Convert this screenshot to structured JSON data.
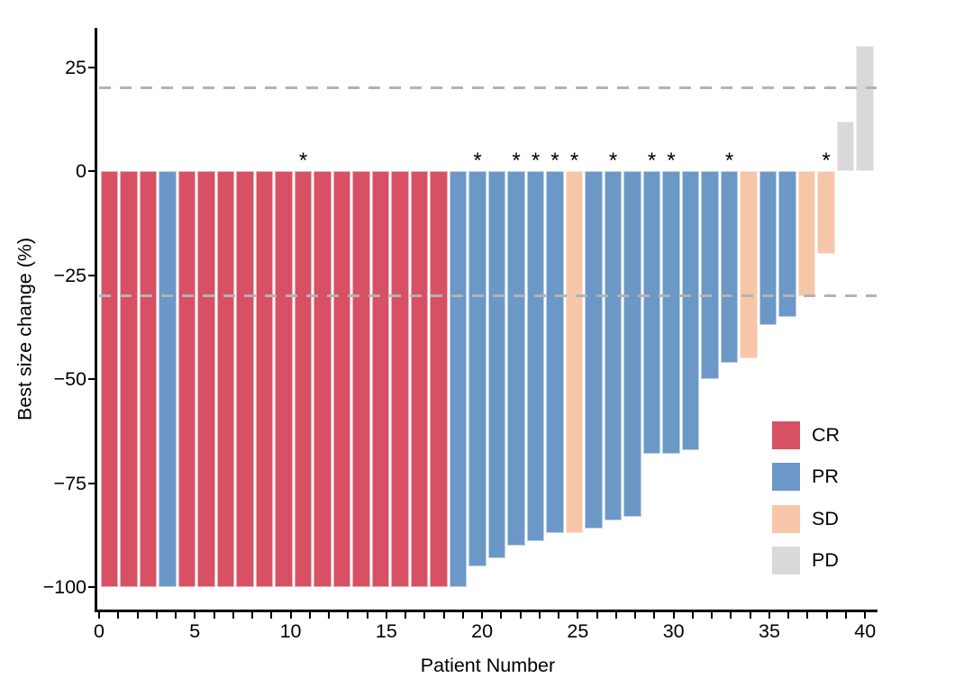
{
  "chart_data": {
    "type": "bar",
    "subtype": "waterfall",
    "title": "",
    "xlabel": "Patient Number",
    "ylabel": "Best size change (%)",
    "ylim": [
      -105.4,
      34
    ],
    "grid": false,
    "yticks": [
      {
        "value": 25,
        "label": "25"
      },
      {
        "value": 0,
        "label": "0"
      },
      {
        "value": -25,
        "label": "−25"
      },
      {
        "value": -50,
        "label": "−50"
      },
      {
        "value": -75,
        "label": "−75"
      },
      {
        "value": -100,
        "label": "−100"
      }
    ],
    "xticks_labeled": [
      0,
      5,
      10,
      15,
      20,
      25,
      30,
      35,
      40
    ],
    "xtick_minor_every": 1,
    "x_axis_max": 40,
    "threshold_lines": [
      {
        "value": 20,
        "style": "dashed",
        "color": "#b3b3b3"
      },
      {
        "value": -30,
        "style": "dashed",
        "color": "#b3b3b3"
      }
    ],
    "annotation_symbol": "*",
    "legend": {
      "position": "right-lower",
      "items": [
        {
          "label": "CR",
          "color": "#d85064"
        },
        {
          "label": "PR",
          "color": "#6b98c6"
        },
        {
          "label": "SD",
          "color": "#f7c6a9"
        },
        {
          "label": "PD",
          "color": "#d9d9d9"
        }
      ]
    },
    "points": [
      {
        "patient": 1,
        "value": -100,
        "response": "CR",
        "starred": false
      },
      {
        "patient": 2,
        "value": -100,
        "response": "CR",
        "starred": false
      },
      {
        "patient": 3,
        "value": -100,
        "response": "CR",
        "starred": false
      },
      {
        "patient": 4,
        "value": -100,
        "response": "PR",
        "starred": false
      },
      {
        "patient": 5,
        "value": -100,
        "response": "CR",
        "starred": false
      },
      {
        "patient": 6,
        "value": -100,
        "response": "CR",
        "starred": false
      },
      {
        "patient": 7,
        "value": -100,
        "response": "CR",
        "starred": false
      },
      {
        "patient": 8,
        "value": -100,
        "response": "CR",
        "starred": false
      },
      {
        "patient": 9,
        "value": -100,
        "response": "CR",
        "starred": false
      },
      {
        "patient": 10,
        "value": -100,
        "response": "CR",
        "starred": false
      },
      {
        "patient": 11,
        "value": -100,
        "response": "CR",
        "starred": true
      },
      {
        "patient": 12,
        "value": -100,
        "response": "CR",
        "starred": false
      },
      {
        "patient": 13,
        "value": -100,
        "response": "CR",
        "starred": false
      },
      {
        "patient": 14,
        "value": -100,
        "response": "CR",
        "starred": false
      },
      {
        "patient": 15,
        "value": -100,
        "response": "CR",
        "starred": false
      },
      {
        "patient": 16,
        "value": -100,
        "response": "CR",
        "starred": false
      },
      {
        "patient": 17,
        "value": -100,
        "response": "CR",
        "starred": false
      },
      {
        "patient": 18,
        "value": -100,
        "response": "CR",
        "starred": false
      },
      {
        "patient": 19,
        "value": -100,
        "response": "PR",
        "starred": false
      },
      {
        "patient": 20,
        "value": -95,
        "response": "PR",
        "starred": true
      },
      {
        "patient": 21,
        "value": -93,
        "response": "PR",
        "starred": false
      },
      {
        "patient": 22,
        "value": -90,
        "response": "PR",
        "starred": true
      },
      {
        "patient": 23,
        "value": -89,
        "response": "PR",
        "starred": true
      },
      {
        "patient": 24,
        "value": -87,
        "response": "PR",
        "starred": true
      },
      {
        "patient": 25,
        "value": -87,
        "response": "SD",
        "starred": true
      },
      {
        "patient": 26,
        "value": -86,
        "response": "PR",
        "starred": false
      },
      {
        "patient": 27,
        "value": -84,
        "response": "PR",
        "starred": true
      },
      {
        "patient": 28,
        "value": -83,
        "response": "PR",
        "starred": false
      },
      {
        "patient": 29,
        "value": -68,
        "response": "PR",
        "starred": true
      },
      {
        "patient": 30,
        "value": -68,
        "response": "PR",
        "starred": true
      },
      {
        "patient": 31,
        "value": -67,
        "response": "PR",
        "starred": false
      },
      {
        "patient": 32,
        "value": -50,
        "response": "PR",
        "starred": false
      },
      {
        "patient": 33,
        "value": -46,
        "response": "PR",
        "starred": true
      },
      {
        "patient": 34,
        "value": -45,
        "response": "SD",
        "starred": false
      },
      {
        "patient": 35,
        "value": -37,
        "response": "PR",
        "starred": false
      },
      {
        "patient": 36,
        "value": -35,
        "response": "PR",
        "starred": false
      },
      {
        "patient": 37,
        "value": -30,
        "response": "SD",
        "starred": false
      },
      {
        "patient": 38,
        "value": -20,
        "response": "SD",
        "starred": true
      },
      {
        "patient": 39,
        "value": 12,
        "response": "PD",
        "starred": false
      },
      {
        "patient": 40,
        "value": 30,
        "response": "PD",
        "starred": false
      }
    ]
  }
}
